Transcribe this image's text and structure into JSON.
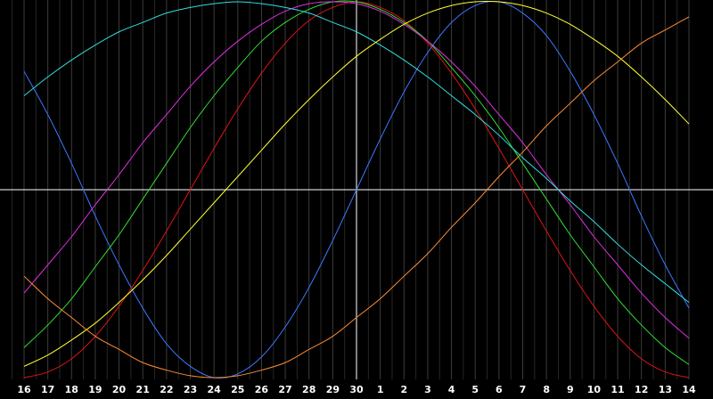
{
  "chart_data": {
    "type": "line",
    "categories": [
      "16",
      "17",
      "18",
      "19",
      "20",
      "21",
      "22",
      "23",
      "24",
      "25",
      "26",
      "27",
      "28",
      "29",
      "30",
      "1",
      "2",
      "3",
      "4",
      "5",
      "6",
      "7",
      "8",
      "9",
      "10",
      "11",
      "12",
      "13",
      "14"
    ],
    "ylim": [
      -1,
      1
    ],
    "series": [
      {
        "color": "#3a78ff",
        "values": [
          0.63,
          0.4,
          0.14,
          -0.14,
          -0.4,
          -0.63,
          -0.82,
          -0.94,
          -1.0,
          -0.98,
          -0.89,
          -0.73,
          -0.52,
          -0.27,
          0,
          0.27,
          0.52,
          0.73,
          0.89,
          0.98,
          1.0,
          0.94,
          0.82,
          0.63,
          0.4,
          0.14,
          -0.14,
          -0.4,
          -0.63
        ]
      },
      {
        "color": "#e01414",
        "values": [
          -1.0,
          -0.97,
          -0.9,
          -0.78,
          -0.62,
          -0.43,
          -0.22,
          0,
          0.22,
          0.43,
          0.62,
          0.78,
          0.9,
          0.97,
          1,
          0.97,
          0.9,
          0.78,
          0.62,
          0.43,
          0.22,
          0,
          -0.22,
          -0.43,
          -0.62,
          -0.78,
          -0.9,
          -0.97,
          -1.0
        ]
      },
      {
        "color": "#33dd33",
        "values": [
          -0.84,
          -0.72,
          -0.58,
          -0.41,
          -0.24,
          -0.05,
          0.14,
          0.33,
          0.5,
          0.65,
          0.79,
          0.89,
          0.96,
          1.0,
          1.0,
          0.96,
          0.89,
          0.79,
          0.65,
          0.5,
          0.33,
          0.14,
          -0.05,
          -0.24,
          -0.41,
          -0.58,
          -0.72,
          -0.84,
          -0.93
        ]
      },
      {
        "color": "#e030e0",
        "values": [
          -0.55,
          -0.4,
          -0.25,
          -0.08,
          0.08,
          0.25,
          0.4,
          0.55,
          0.68,
          0.79,
          0.88,
          0.95,
          0.99,
          1,
          0.99,
          0.95,
          0.88,
          0.79,
          0.68,
          0.55,
          0.4,
          0.25,
          0.08,
          -0.08,
          -0.25,
          -0.4,
          -0.55,
          -0.68,
          -0.79
        ]
      },
      {
        "color": "#33dddd",
        "values": [
          0.5,
          0.6,
          0.69,
          0.77,
          0.84,
          0.89,
          0.94,
          0.97,
          0.99,
          1,
          0.99,
          0.97,
          0.94,
          0.89,
          0.84,
          0.77,
          0.69,
          0.6,
          0.5,
          0.4,
          0.29,
          0.17,
          0.06,
          -0.06,
          -0.17,
          -0.29,
          -0.4,
          -0.5,
          -0.6
        ]
      },
      {
        "color": "#ffff33",
        "values": [
          -0.94,
          -0.88,
          -0.8,
          -0.71,
          -0.6,
          -0.48,
          -0.35,
          -0.21,
          -0.07,
          0.07,
          0.21,
          0.35,
          0.48,
          0.6,
          0.71,
          0.8,
          0.88,
          0.94,
          0.98,
          1.0,
          1.0,
          0.98,
          0.94,
          0.88,
          0.8,
          0.71,
          0.6,
          0.48,
          0.35
        ]
      },
      {
        "color": "#ff8c33",
        "values": [
          -0.46,
          -0.58,
          -0.68,
          -0.78,
          -0.85,
          -0.92,
          -0.96,
          -0.99,
          -1,
          -0.99,
          -0.96,
          -0.92,
          -0.85,
          -0.78,
          -0.68,
          -0.58,
          -0.46,
          -0.34,
          -0.2,
          -0.07,
          0.07,
          0.2,
          0.34,
          0.46,
          0.58,
          0.68,
          0.78,
          0.85,
          0.92
        ]
      }
    ]
  }
}
